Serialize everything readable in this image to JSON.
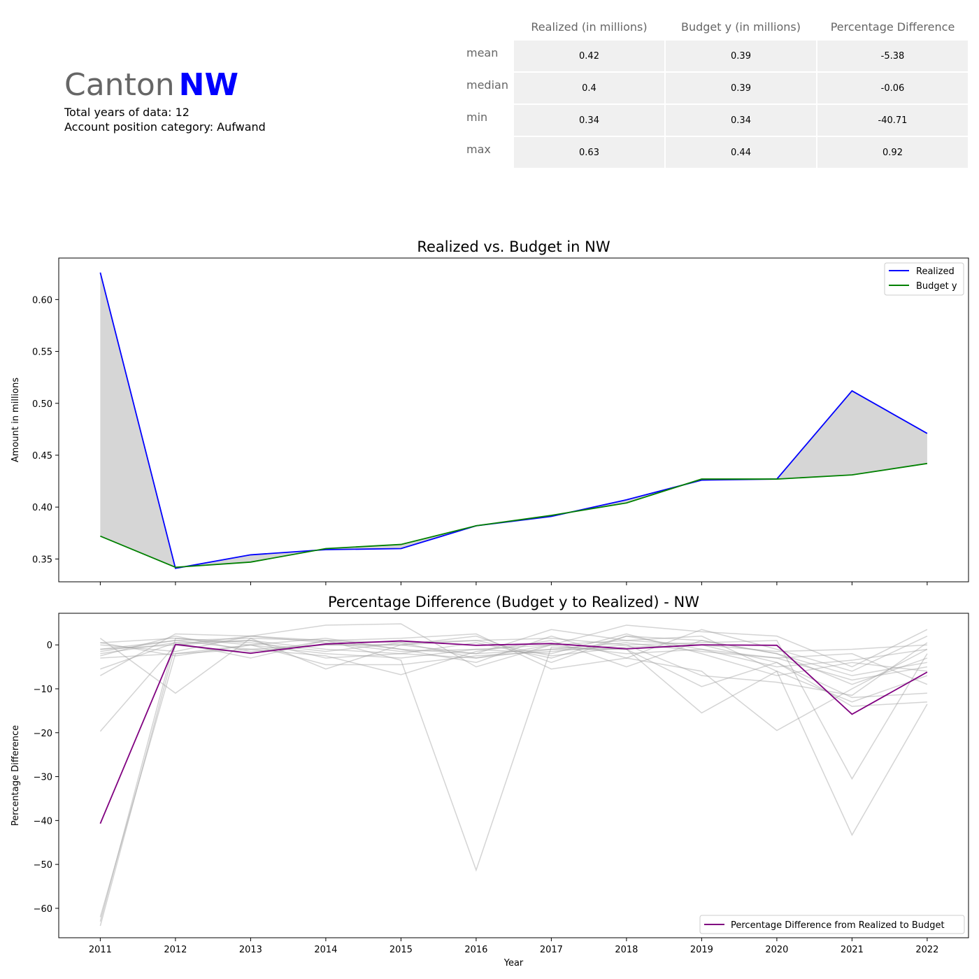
{
  "header": {
    "canton_word": "Canton",
    "canton_code": "NW",
    "total_years_line": "Total years of data: 12",
    "category_line": "Account position category: Aufwand"
  },
  "stats_table": {
    "columns": [
      "Realized (in millions)",
      "Budget y (in millions)",
      "Percentage Difference"
    ],
    "rows": [
      {
        "label": "mean",
        "values": [
          "0.42",
          "0.39",
          "-5.38"
        ]
      },
      {
        "label": "median",
        "values": [
          "0.4",
          "0.39",
          "-0.06"
        ]
      },
      {
        "label": "min",
        "values": [
          "0.34",
          "0.34",
          "-40.71"
        ]
      },
      {
        "label": "max",
        "values": [
          "0.63",
          "0.44",
          "0.92"
        ]
      }
    ]
  },
  "chart_data": [
    {
      "type": "line",
      "title": "Realized vs. Budget in NW",
      "xlabel": "",
      "ylabel": "Amount in millions",
      "x": [
        2011,
        2012,
        2013,
        2014,
        2015,
        2016,
        2017,
        2018,
        2019,
        2020,
        2021,
        2022
      ],
      "ylim": [
        0.328,
        0.64
      ],
      "yticks": [
        0.35,
        0.4,
        0.45,
        0.5,
        0.55,
        0.6
      ],
      "ytick_labels": [
        "0.35",
        "0.40",
        "0.45",
        "0.50",
        "0.55",
        "0.60"
      ],
      "fill_between": true,
      "legend_position": "upper-right",
      "series": [
        {
          "name": "Realized",
          "color": "#0000ff",
          "values": [
            0.626,
            0.341,
            0.354,
            0.359,
            0.36,
            0.382,
            0.391,
            0.407,
            0.426,
            0.427,
            0.512,
            0.471
          ]
        },
        {
          "name": "Budget y",
          "color": "#008000",
          "values": [
            0.372,
            0.342,
            0.347,
            0.36,
            0.364,
            0.382,
            0.392,
            0.404,
            0.427,
            0.427,
            0.431,
            0.442
          ]
        }
      ]
    },
    {
      "type": "line",
      "title": "Percentage Difference (Budget y to Realized) - NW",
      "xlabel": "Year",
      "ylabel": "Percentage Difference",
      "x": [
        2011,
        2012,
        2013,
        2014,
        2015,
        2016,
        2017,
        2018,
        2019,
        2020,
        2021,
        2022
      ],
      "ylim": [
        -66.7,
        7.2
      ],
      "yticks": [
        -60,
        -50,
        -40,
        -30,
        -20,
        -10,
        0
      ],
      "ytick_labels": [
        "−60",
        "−50",
        "−40",
        "−30",
        "−20",
        "−10",
        "0"
      ],
      "legend_position": "lower-right",
      "highlight": {
        "name": "Percentage Difference from Realized to Budget",
        "color": "#800080",
        "values": [
          -40.7,
          0.1,
          -1.9,
          0.2,
          0.9,
          -0.1,
          0.3,
          -0.9,
          0.0,
          -0.1,
          -15.8,
          -6.2
        ]
      },
      "background_color": "#a0a0a0",
      "background_series": [
        [
          -63,
          1.5,
          0,
          -2,
          -3,
          -1,
          0,
          -2,
          -1,
          -3,
          -8,
          -5
        ],
        [
          -62,
          -2,
          -1,
          0,
          0,
          2,
          -4,
          2,
          1,
          -2,
          -7,
          -4
        ],
        [
          -64,
          0,
          1,
          -1,
          -2,
          -3,
          0,
          1,
          0,
          -4,
          -12,
          -11
        ],
        [
          -19.7,
          0,
          2,
          1,
          -1,
          -2,
          3.5,
          1,
          2,
          -6,
          -13,
          -7
        ],
        [
          -7,
          2.5,
          2,
          4.5,
          4.8,
          -5,
          0,
          4.5,
          3,
          2,
          -5,
          3.5
        ],
        [
          1.5,
          -11,
          1.5,
          1,
          -3.5,
          -51.3,
          -0.5,
          -1,
          -15.5,
          -6,
          -43.3,
          -13.5
        ],
        [
          -5.5,
          0.5,
          -3,
          1,
          1.5,
          2.5,
          -5.5,
          -3,
          -6,
          -19.5,
          -10,
          -1
        ],
        [
          0.5,
          1.5,
          0.5,
          -1.5,
          0.5,
          1,
          1.5,
          0,
          0.5,
          1,
          -30.5,
          -2
        ],
        [
          -1,
          1,
          1.5,
          -5.5,
          0,
          -2,
          -1,
          -1,
          -9.5,
          -4,
          -14,
          -13
        ],
        [
          -3,
          -2,
          0,
          1.5,
          -1,
          -4,
          2,
          -3,
          3.5,
          -1,
          -6,
          2
        ],
        [
          -1.5,
          1,
          -1,
          -2.5,
          -6.8,
          -1.5,
          1,
          -5,
          1,
          -2,
          -9,
          -3
        ],
        [
          0,
          -1.5,
          2,
          0.5,
          -1.5,
          -1,
          -2,
          2.5,
          -2,
          -7,
          -4,
          -6
        ],
        [
          -2,
          0.5,
          1,
          -3,
          -2,
          0.5,
          -3,
          2,
          -1,
          -5,
          -3.5,
          -1
        ],
        [
          0.5,
          -2.5,
          0,
          -4.5,
          -4.5,
          -2.5,
          -1.5,
          0,
          -7,
          -8.5,
          -11.5,
          0.5
        ],
        [
          -1,
          0,
          -2,
          1,
          0.5,
          -3,
          -1,
          0.5,
          -1.5,
          -3,
          -2,
          -9
        ],
        [
          -2.5,
          2,
          -1.5,
          0,
          0,
          1,
          -2.5,
          -0.5,
          0,
          -1.5,
          -1,
          0
        ]
      ]
    }
  ]
}
